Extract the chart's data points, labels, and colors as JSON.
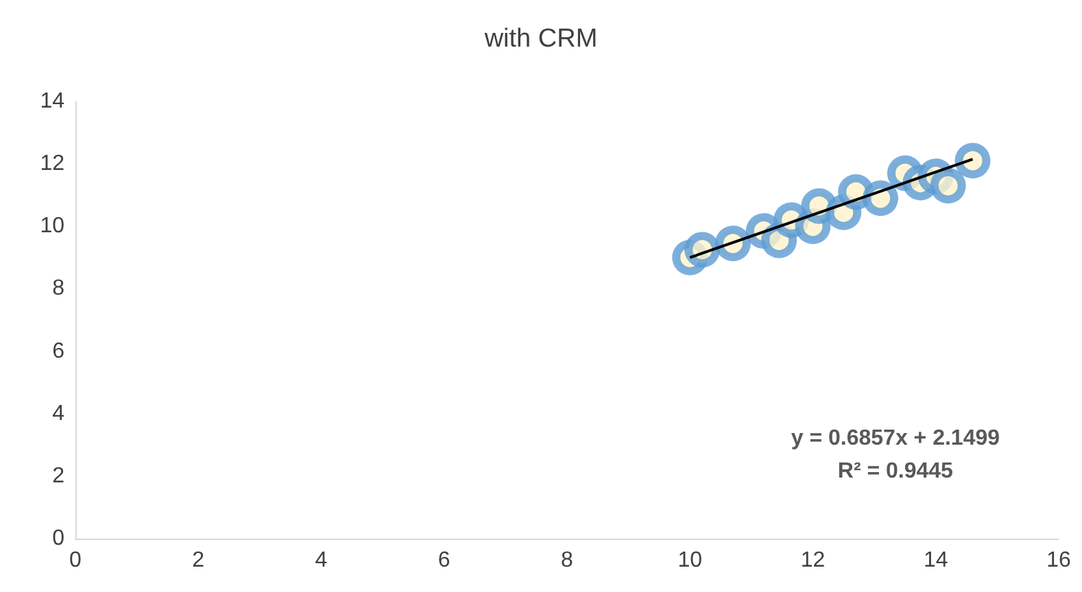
{
  "chart_data": {
    "type": "scatter",
    "title": "with CRM",
    "xlim": [
      0,
      16
    ],
    "xticks": [
      0,
      2,
      4,
      6,
      8,
      10,
      12,
      14,
      16
    ],
    "ylim": [
      0,
      14
    ],
    "yticks": [
      0,
      2,
      4,
      6,
      8,
      10,
      12,
      14
    ],
    "grid": false,
    "series": [
      {
        "color": "#5b9bd5",
        "marker": "circle",
        "x": [
          10.0,
          10.2,
          10.7,
          11.2,
          11.45,
          11.65,
          12.0,
          12.1,
          12.5,
          12.7,
          13.1,
          13.5,
          13.75,
          14.0,
          14.2,
          14.6
        ],
        "values": [
          9.0,
          9.25,
          9.45,
          9.85,
          9.55,
          10.2,
          10.0,
          10.65,
          10.45,
          11.1,
          10.9,
          11.7,
          11.4,
          11.6,
          11.3,
          12.1
        ]
      },
      {
        "type": "line",
        "color": "#000000",
        "marker": "none",
        "x": [
          10.0,
          14.6
        ],
        "values": [
          9.0,
          12.15
        ]
      }
    ],
    "annotations": [
      "y = 0.6857x + 2.1499",
      "R² = 0.9445"
    ]
  }
}
